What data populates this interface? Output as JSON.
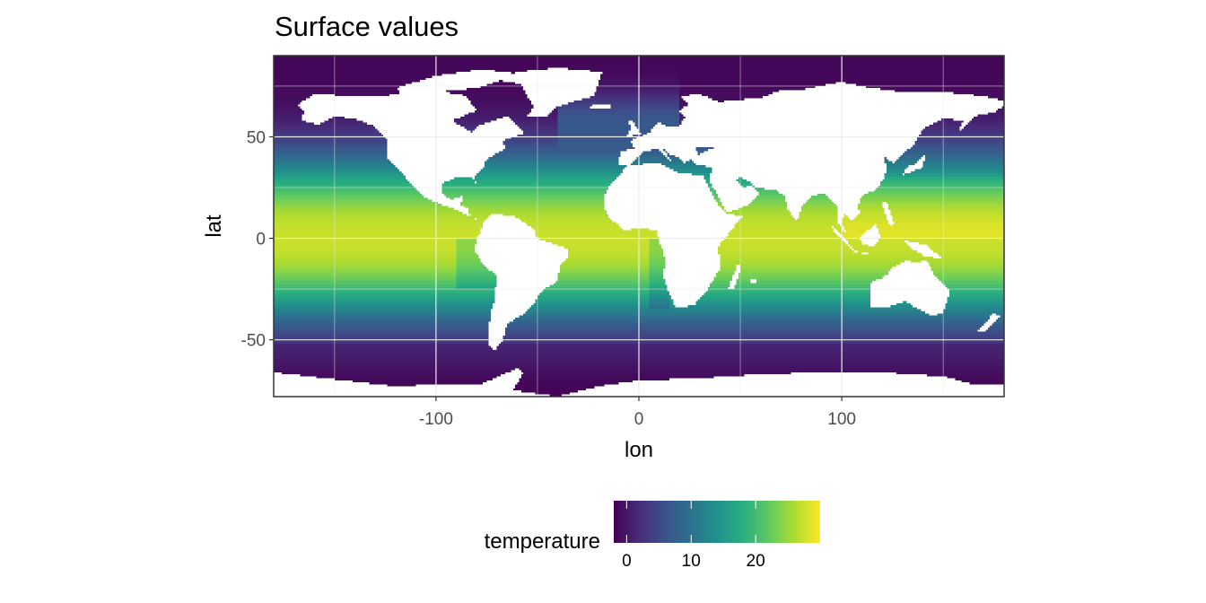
{
  "chart_data": {
    "type": "heatmap",
    "title": "Surface values",
    "xlabel": "lon",
    "ylabel": "lat",
    "xlim": [
      -180,
      180
    ],
    "ylim": [
      -78,
      90
    ],
    "x_ticks": [
      -100,
      0,
      100
    ],
    "y_ticks": [
      -50,
      0,
      50
    ],
    "grid": true,
    "legend": {
      "title": "temperature",
      "position": "bottom",
      "range": [
        -2,
        30
      ],
      "ticks": [
        0,
        10,
        20
      ],
      "colormap": "viridis"
    },
    "colors": {
      "missing": "#ffffff",
      "grid": "#ebebeb",
      "panel_border": "#333333",
      "viridis": [
        "#440154",
        "#472d7b",
        "#3b528b",
        "#2c728e",
        "#21918c",
        "#28ae80",
        "#5ec962",
        "#addc30",
        "#fde725"
      ]
    }
  }
}
